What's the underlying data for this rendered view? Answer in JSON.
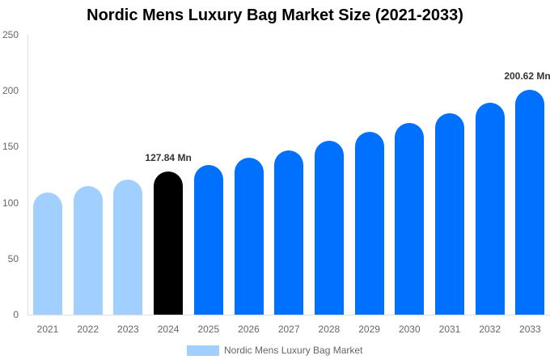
{
  "chart_data": {
    "type": "bar",
    "title": "Nordic Mens Luxury Bag Market Size (2021-2033)",
    "xlabel": "",
    "ylabel": "",
    "ylim": [
      0,
      250
    ],
    "yticks": [
      0,
      50,
      100,
      150,
      200,
      250
    ],
    "grid": false,
    "legend_position": "bottom",
    "categories": [
      "2021",
      "2022",
      "2023",
      "2024",
      "2025",
      "2026",
      "2027",
      "2028",
      "2029",
      "2030",
      "2031",
      "2032",
      "2033"
    ],
    "series": [
      {
        "name": "Nordic Mens Luxury Bag Market",
        "values": [
          109,
          115,
          121,
          127.84,
          134,
          140,
          147,
          155,
          163,
          171,
          180,
          189,
          200.62
        ]
      }
    ],
    "bar_colors": [
      "#a1cfff",
      "#a1cfff",
      "#a1cfff",
      "#000000",
      "#0070ff",
      "#0070ff",
      "#0070ff",
      "#0070ff",
      "#0070ff",
      "#0070ff",
      "#0070ff",
      "#0070ff",
      "#0070ff"
    ],
    "annotations": [
      {
        "category": "2024",
        "text": "127.84 Mn"
      },
      {
        "category": "2033",
        "text": "200.62 Mn"
      }
    ]
  },
  "legend": {
    "label": "Nordic Mens Luxury Bag Market",
    "color": "#a1cfff"
  }
}
